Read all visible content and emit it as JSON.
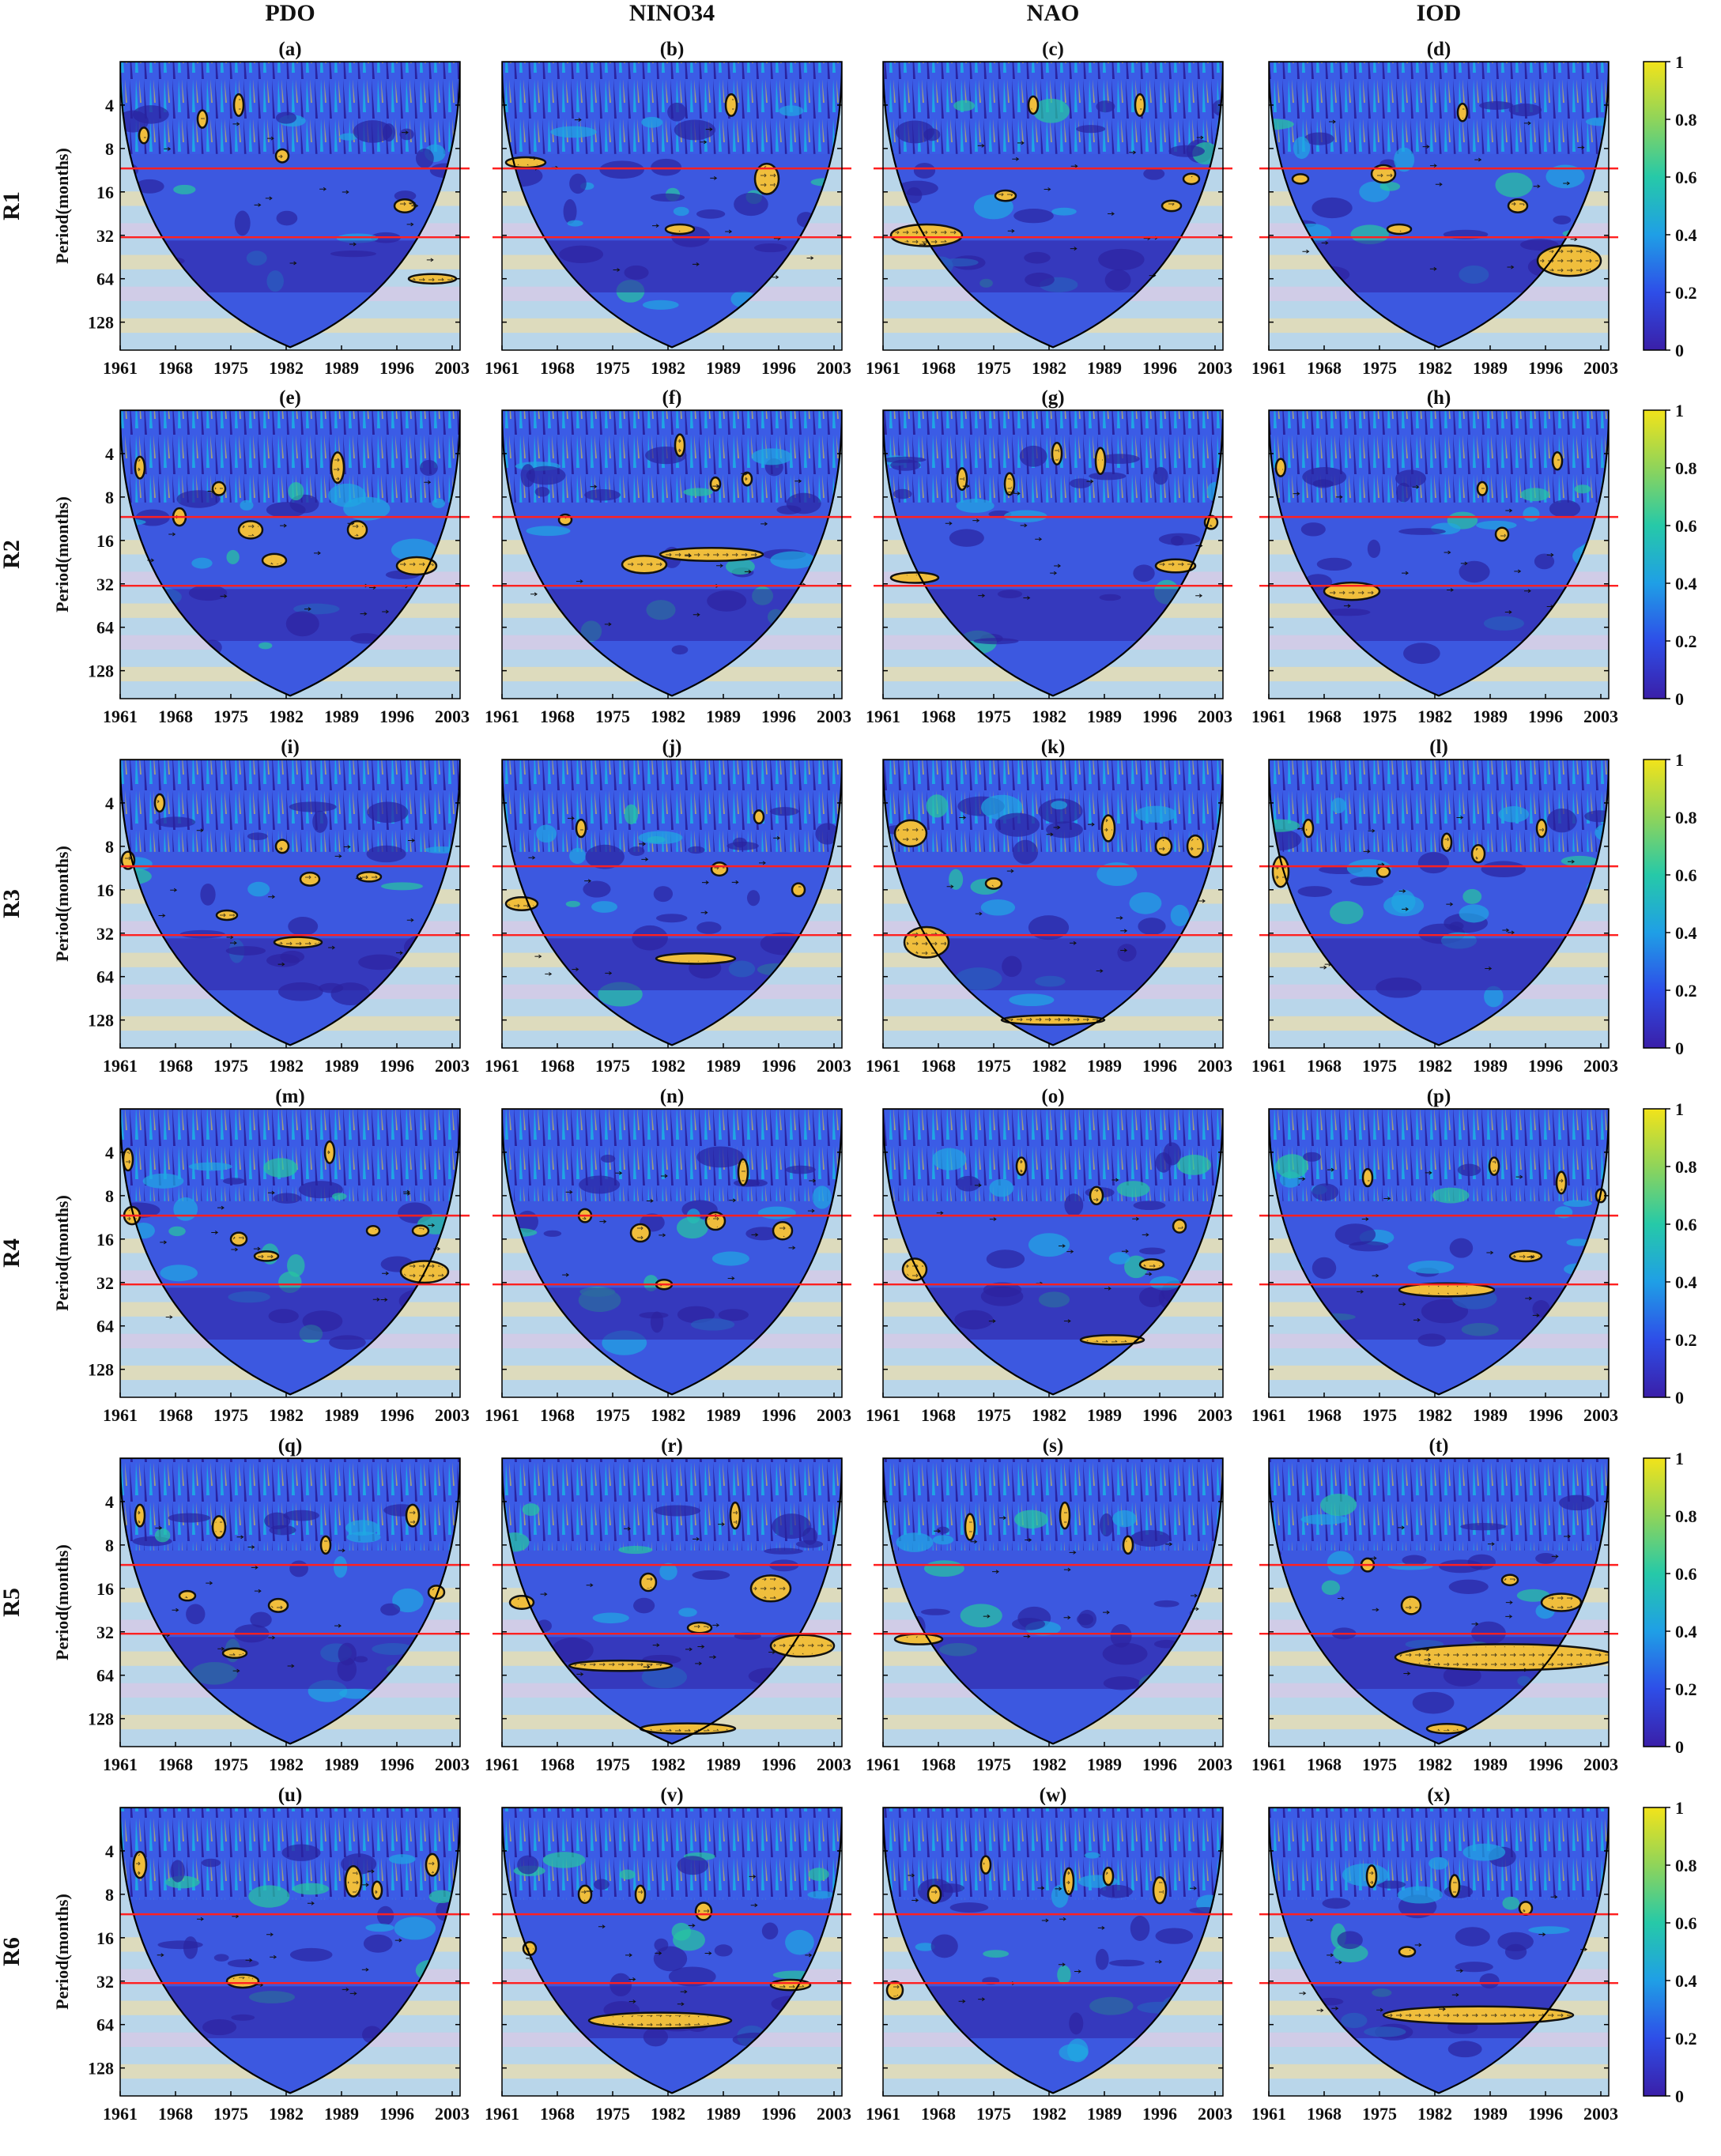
{
  "columns": [
    "PDO",
    "NINO34",
    "NAO",
    "IOD"
  ],
  "chart_data": {
    "type": "heatmap",
    "panel_labels": [
      "(a)",
      "(b)",
      "(c)",
      "(d)",
      "(e)",
      "(f)",
      "(g)",
      "(h)",
      "(i)",
      "(j)",
      "(k)",
      "(l)",
      "(m)",
      "(n)",
      "(o)",
      "(p)",
      "(q)",
      "(r)",
      "(s)",
      "(t)",
      "(u)",
      "(v)",
      "(w)",
      "(x)"
    ],
    "rows": [
      "R1",
      "R2",
      "R3",
      "R4",
      "R5",
      "R6"
    ],
    "ylabel": "Period(months)",
    "x_ticks": [
      "1961",
      "1968",
      "1975",
      "1982",
      "1989",
      "1996",
      "2003"
    ],
    "x_tick_values": [
      1961,
      1968,
      1975,
      1982,
      1989,
      1996,
      2003
    ],
    "xlim": [
      1961,
      2004
    ],
    "y_ticks": [
      "4",
      "8",
      "16",
      "32",
      "64",
      "128"
    ],
    "y_tick_values": [
      4,
      8,
      16,
      32,
      64,
      128
    ],
    "ylim": [
      2,
      200
    ],
    "y_scale": "log2",
    "y_reversed": true,
    "reference_periods": [
      11,
      33
    ],
    "colorbar": {
      "ticks": [
        "0",
        "0.2",
        "0.4",
        "0.6",
        "0.8",
        "1"
      ],
      "values": [
        0,
        0.2,
        0.4,
        0.6,
        0.8,
        1
      ],
      "range": [
        0,
        1
      ]
    },
    "colormap": [
      "#3a1fa8",
      "#2e4ee8",
      "#1f9fe6",
      "#26c9a8",
      "#8fd45a",
      "#f2e31a"
    ],
    "significance_fill": "#f0be3c",
    "significant_regions": [
      [
        [
          1964.0,
          6.5,
          0.6,
          0.18
        ],
        [
          1971.4,
          5.0,
          0.5,
          0.2
        ],
        [
          1976.0,
          4.0,
          0.5,
          0.25
        ],
        [
          1981.5,
          9.0,
          0.8,
          0.15
        ],
        [
          1997.0,
          20.0,
          1.3,
          0.15
        ],
        [
          2000.5,
          64.0,
          3.0,
          0.1
        ]
      ],
      [
        [
          1964.0,
          10.0,
          2.5,
          0.12
        ],
        [
          1983.5,
          29.0,
          1.8,
          0.1
        ],
        [
          1990.0,
          4.0,
          0.7,
          0.25
        ],
        [
          1994.5,
          13.0,
          1.5,
          0.35
        ]
      ],
      [
        [
          1966.5,
          32.0,
          4.5,
          0.25
        ],
        [
          1976.5,
          17.0,
          1.3,
          0.12
        ],
        [
          1980.0,
          4.0,
          0.6,
          0.2
        ],
        [
          1993.5,
          4.0,
          0.6,
          0.25
        ],
        [
          1997.5,
          20.0,
          1.2,
          0.12
        ],
        [
          2000.0,
          13.0,
          1.0,
          0.12
        ]
      ],
      [
        [
          1965.0,
          13.0,
          1.0,
          0.1
        ],
        [
          1975.5,
          12.0,
          1.5,
          0.2
        ],
        [
          1977.5,
          29.0,
          1.5,
          0.1
        ],
        [
          1985.5,
          4.5,
          0.5,
          0.2
        ],
        [
          1992.5,
          20.0,
          1.2,
          0.15
        ],
        [
          1999.0,
          48.0,
          4.0,
          0.35
        ]
      ],
      [
        [
          1963.5,
          5.0,
          0.5,
          0.25
        ],
        [
          1968.5,
          11.0,
          0.8,
          0.2
        ],
        [
          1973.5,
          7.0,
          0.8,
          0.15
        ],
        [
          1977.5,
          13.5,
          1.5,
          0.2
        ],
        [
          1980.5,
          22.0,
          1.5,
          0.15
        ],
        [
          1988.5,
          5.0,
          0.8,
          0.35
        ],
        [
          1991.0,
          13.5,
          1.2,
          0.2
        ],
        [
          1998.5,
          24.0,
          2.5,
          0.2
        ]
      ],
      [
        [
          1969.0,
          11.5,
          0.8,
          0.12
        ],
        [
          1979.0,
          23.5,
          2.8,
          0.2
        ],
        [
          1983.5,
          3.5,
          0.6,
          0.25
        ],
        [
          1987.5,
          20.0,
          6.5,
          0.15
        ],
        [
          1988.0,
          6.5,
          0.6,
          0.15
        ],
        [
          1992.0,
          6.0,
          0.6,
          0.15
        ]
      ],
      [
        [
          1965.0,
          29.0,
          3.0,
          0.12
        ],
        [
          1971.0,
          6.0,
          0.6,
          0.25
        ],
        [
          1977.0,
          6.5,
          0.6,
          0.25
        ],
        [
          1983.0,
          4.0,
          0.6,
          0.25
        ],
        [
          1988.5,
          4.5,
          0.6,
          0.3
        ],
        [
          1998.0,
          24.0,
          2.5,
          0.15
        ],
        [
          2002.5,
          12.0,
          0.8,
          0.15
        ]
      ],
      [
        [
          1962.5,
          5.0,
          0.5,
          0.2
        ],
        [
          1971.5,
          36.0,
          3.5,
          0.2
        ],
        [
          1988.0,
          7.0,
          0.6,
          0.15
        ],
        [
          1990.5,
          14.5,
          0.8,
          0.15
        ],
        [
          1997.5,
          4.5,
          0.6,
          0.2
        ]
      ],
      [
        [
          1962.0,
          10.0,
          0.8,
          0.2
        ],
        [
          1966.0,
          4.0,
          0.5,
          0.2
        ],
        [
          1974.5,
          24.0,
          1.3,
          0.1
        ],
        [
          1981.5,
          8.0,
          0.8,
          0.15
        ],
        [
          1985.0,
          13.5,
          1.2,
          0.15
        ],
        [
          1983.5,
          37.0,
          3.0,
          0.12
        ],
        [
          1992.5,
          13.0,
          1.5,
          0.1
        ]
      ],
      [
        [
          1963.5,
          20.0,
          2.0,
          0.15
        ],
        [
          1971.0,
          6.0,
          0.6,
          0.2
        ],
        [
          1988.5,
          11.5,
          1.0,
          0.15
        ],
        [
          1985.5,
          48.0,
          5.0,
          0.12
        ],
        [
          1993.5,
          5.0,
          0.6,
          0.15
        ],
        [
          1998.5,
          16.0,
          0.8,
          0.15
        ]
      ],
      [
        [
          1964.5,
          6.5,
          2.0,
          0.3
        ],
        [
          1966.5,
          37.0,
          2.8,
          0.35
        ],
        [
          1975.0,
          14.5,
          1.0,
          0.12
        ],
        [
          1982.5,
          128.0,
          6.5,
          0.1
        ],
        [
          1989.5,
          6.0,
          0.8,
          0.3
        ],
        [
          1996.5,
          8.0,
          1.0,
          0.2
        ],
        [
          2000.5,
          8.0,
          1.0,
          0.25
        ]
      ],
      [
        [
          1962.5,
          12.0,
          1.0,
          0.35
        ],
        [
          1966.0,
          6.0,
          0.5,
          0.2
        ],
        [
          1975.5,
          12.0,
          0.8,
          0.12
        ],
        [
          1983.5,
          7.5,
          0.6,
          0.2
        ],
        [
          1987.5,
          9.0,
          0.8,
          0.2
        ],
        [
          1995.5,
          6.0,
          0.6,
          0.2
        ]
      ],
      [
        [
          1962.0,
          4.5,
          0.6,
          0.25
        ],
        [
          1962.5,
          11.0,
          1.0,
          0.2
        ],
        [
          1976.0,
          16.0,
          1.0,
          0.15
        ],
        [
          1979.5,
          21.0,
          1.5,
          0.1
        ],
        [
          1987.5,
          4.0,
          0.6,
          0.25
        ],
        [
          1993.0,
          14.0,
          0.8,
          0.1
        ],
        [
          1999.5,
          27.0,
          3.0,
          0.25
        ],
        [
          1999.0,
          14.0,
          1.0,
          0.12
        ]
      ],
      [
        [
          1971.5,
          11.0,
          0.8,
          0.15
        ],
        [
          1978.5,
          14.5,
          1.2,
          0.2
        ],
        [
          1981.5,
          33.0,
          1.0,
          0.08
        ],
        [
          1988.0,
          12.0,
          1.2,
          0.2
        ],
        [
          1991.5,
          5.5,
          0.6,
          0.3
        ],
        [
          1996.5,
          14.0,
          1.2,
          0.2
        ]
      ],
      [
        [
          1965.0,
          26.0,
          1.5,
          0.25
        ],
        [
          1978.5,
          5.0,
          0.6,
          0.2
        ],
        [
          1988.0,
          8.0,
          0.8,
          0.2
        ],
        [
          1995.0,
          24.0,
          1.5,
          0.12
        ],
        [
          1998.5,
          13.0,
          0.8,
          0.15
        ],
        [
          1990.0,
          80.0,
          4.0,
          0.1
        ]
      ],
      [
        [
          1973.5,
          6.0,
          0.6,
          0.2
        ],
        [
          1983.5,
          36.0,
          6.0,
          0.15
        ],
        [
          1989.5,
          5.0,
          0.6,
          0.2
        ],
        [
          1993.5,
          21.0,
          2.0,
          0.12
        ],
        [
          1998.0,
          6.5,
          0.6,
          0.25
        ],
        [
          2003.0,
          8.0,
          0.6,
          0.15
        ]
      ],
      [
        [
          1963.5,
          5.0,
          0.5,
          0.25
        ],
        [
          1969.5,
          18.0,
          1.0,
          0.1
        ],
        [
          1973.5,
          6.0,
          0.8,
          0.25
        ],
        [
          1975.5,
          45.0,
          1.5,
          0.1
        ],
        [
          1981.0,
          21.0,
          1.2,
          0.15
        ],
        [
          1987.0,
          8.0,
          0.6,
          0.2
        ],
        [
          1998.0,
          5.0,
          0.8,
          0.25
        ],
        [
          2001.0,
          17.0,
          1.0,
          0.15
        ]
      ],
      [
        [
          1963.5,
          20.0,
          1.5,
          0.15
        ],
        [
          1976.0,
          55.0,
          6.5,
          0.12
        ],
        [
          1979.5,
          14.5,
          1.0,
          0.2
        ],
        [
          1986.0,
          30.0,
          1.5,
          0.12
        ],
        [
          1990.5,
          5.0,
          0.6,
          0.3
        ],
        [
          1995.0,
          16.0,
          2.5,
          0.3
        ],
        [
          1999.0,
          40.0,
          4.0,
          0.25
        ],
        [
          1984.5,
          150.0,
          6.0,
          0.12
        ]
      ],
      [
        [
          1965.5,
          36.0,
          3.0,
          0.12
        ],
        [
          1972.0,
          6.0,
          0.6,
          0.3
        ],
        [
          1984.0,
          5.0,
          0.5,
          0.3
        ],
        [
          1992.0,
          8.0,
          0.6,
          0.2
        ]
      ],
      [
        [
          1973.5,
          11.0,
          0.8,
          0.15
        ],
        [
          1979.0,
          21.0,
          1.2,
          0.2
        ],
        [
          1991.5,
          14.0,
          1.0,
          0.12
        ],
        [
          1998.0,
          20.0,
          2.5,
          0.2
        ],
        [
          1991.0,
          48.0,
          14.0,
          0.3
        ],
        [
          1983.5,
          150.0,
          2.5,
          0.1
        ]
      ],
      [
        [
          1963.5,
          5.0,
          0.8,
          0.3
        ],
        [
          1976.5,
          32.0,
          2.0,
          0.15
        ],
        [
          1990.5,
          6.5,
          1.0,
          0.35
        ],
        [
          1993.5,
          7.5,
          0.6,
          0.2
        ],
        [
          2000.5,
          5.0,
          0.8,
          0.25
        ]
      ],
      [
        [
          1964.5,
          19.0,
          0.8,
          0.15
        ],
        [
          1971.5,
          8.0,
          0.8,
          0.2
        ],
        [
          1978.5,
          8.0,
          0.6,
          0.2
        ],
        [
          1986.5,
          10.5,
          1.0,
          0.2
        ],
        [
          1981.0,
          60.0,
          9.0,
          0.18
        ],
        [
          1997.5,
          34.0,
          2.5,
          0.12
        ]
      ],
      [
        [
          1962.5,
          37.0,
          1.0,
          0.2
        ],
        [
          1967.5,
          8.0,
          0.8,
          0.2
        ],
        [
          1974.0,
          5.0,
          0.6,
          0.2
        ],
        [
          1984.5,
          6.5,
          0.6,
          0.3
        ],
        [
          1989.5,
          6.0,
          0.6,
          0.2
        ],
        [
          1996.0,
          7.5,
          0.8,
          0.3
        ]
      ],
      [
        [
          1974.0,
          6.0,
          0.6,
          0.25
        ],
        [
          1978.5,
          20.0,
          1.0,
          0.1
        ],
        [
          1984.5,
          7.0,
          0.6,
          0.25
        ],
        [
          1993.5,
          10.0,
          0.8,
          0.15
        ],
        [
          1987.5,
          55.0,
          12.0,
          0.2
        ]
      ]
    ]
  }
}
